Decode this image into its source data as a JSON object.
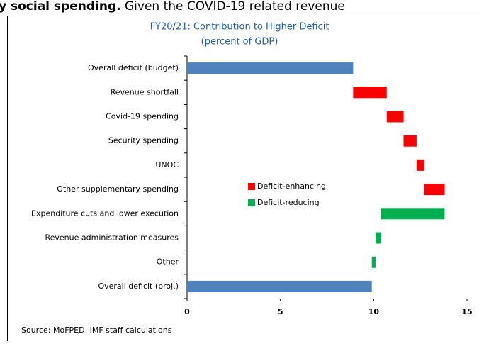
{
  "page_header": {
    "bold": "y social spending.",
    "rest": " Given the COVID-19 related revenue"
  },
  "chart_data": {
    "type": "waterfall",
    "title": "FY20/21: Contribution to Higher Deficit",
    "subtitle": "(percent of GDP)",
    "categories": [
      "Overall deficit (budget)",
      "Revenue shortfall",
      "Covid-19 spending",
      "Security spending",
      "UNOC",
      "Other supplementary spending",
      "Expenditure cuts and lower execution",
      "Revenue administration measures",
      "Other",
      "Overall deficit (proj.)"
    ],
    "values": [
      8.9,
      1.8,
      0.9,
      0.7,
      0.4,
      1.1,
      -3.4,
      -0.3,
      -0.2,
      9.9
    ],
    "measures": [
      "total",
      "relative",
      "relative",
      "relative",
      "relative",
      "relative",
      "relative",
      "relative",
      "relative",
      "total"
    ],
    "total_color": "#4f81bd",
    "series": [
      {
        "name": "Deficit-enhancing",
        "color": "#ff0000"
      },
      {
        "name": "Deficit-reducing",
        "color": "#00b050"
      }
    ],
    "xlim": [
      0,
      15
    ],
    "xticks": [
      0,
      5,
      10,
      15
    ],
    "source": "Source: MoFPED, IMF staff calculations"
  }
}
